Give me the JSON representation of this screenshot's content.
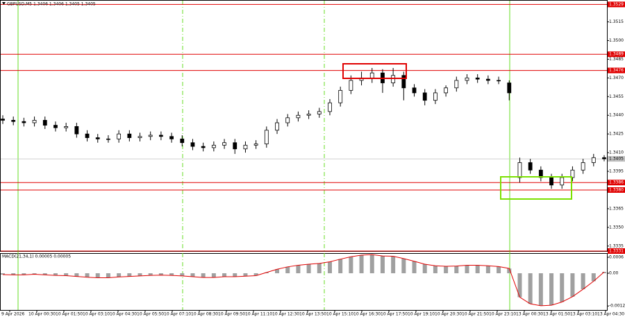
{
  "chart_data": {
    "type": "candlestick",
    "title": "GBPUSD,M5  1.3406 1.3406 1.3405 1.3405",
    "open": [
      1.3437,
      1.3436,
      1.3435,
      1.3434,
      1.3436,
      1.3432,
      1.343,
      1.3431,
      1.3425,
      1.3422,
      1.3421,
      1.3421,
      1.3425,
      1.3422,
      1.3423,
      1.3424,
      1.3423,
      1.3421,
      1.3418,
      1.3415,
      1.3414,
      1.3416,
      1.3418,
      1.3413,
      1.3416,
      1.3417,
      1.3428,
      1.3434,
      1.3438,
      1.344,
      1.3441,
      1.3443,
      1.345,
      1.346,
      1.3468,
      1.347,
      1.3474,
      1.3466,
      1.3472,
      1.3462,
      1.3458,
      1.3452,
      1.3458,
      1.3462,
      1.3468,
      1.347,
      1.3469,
      1.3468,
      1.3466,
      1.339,
      1.3402,
      1.3396,
      1.339,
      1.3384,
      1.339,
      1.3396,
      1.3402,
      1.3406
    ],
    "high": [
      1.344,
      1.3439,
      1.3438,
      1.3439,
      1.3439,
      1.3435,
      1.3434,
      1.3434,
      1.3428,
      1.3425,
      1.3424,
      1.3428,
      1.3428,
      1.3426,
      1.3427,
      1.3427,
      1.3426,
      1.3424,
      1.3421,
      1.3418,
      1.3419,
      1.3421,
      1.3421,
      1.3419,
      1.342,
      1.3431,
      1.3437,
      1.3441,
      1.3443,
      1.3444,
      1.3446,
      1.3453,
      1.3463,
      1.3472,
      1.3475,
      1.3478,
      1.3477,
      1.3478,
      1.3475,
      1.3465,
      1.3461,
      1.3461,
      1.3464,
      1.3471,
      1.3473,
      1.3473,
      1.3472,
      1.3471,
      1.3468,
      1.3406,
      1.3405,
      1.3399,
      1.3393,
      1.3393,
      1.3399,
      1.3405,
      1.3409,
      1.3408
    ],
    "low": [
      1.3433,
      1.3432,
      1.3431,
      1.3431,
      1.3429,
      1.3427,
      1.3427,
      1.3422,
      1.3419,
      1.3418,
      1.3418,
      1.3418,
      1.3419,
      1.3419,
      1.342,
      1.342,
      1.3418,
      1.3415,
      1.3412,
      1.3411,
      1.3411,
      1.3413,
      1.3409,
      1.341,
      1.3413,
      1.3414,
      1.3425,
      1.3431,
      1.3435,
      1.3437,
      1.3438,
      1.344,
      1.3447,
      1.3457,
      1.3464,
      1.3466,
      1.3458,
      1.3463,
      1.3452,
      1.3455,
      1.3448,
      1.3449,
      1.3455,
      1.3459,
      1.3465,
      1.3466,
      1.3465,
      1.3465,
      1.3452,
      1.3386,
      1.3393,
      1.3387,
      1.3381,
      1.3381,
      1.3387,
      1.3393,
      1.3399,
      1.3403
    ],
    "close": [
      1.3436,
      1.3435,
      1.3434,
      1.3436,
      1.3432,
      1.343,
      1.3431,
      1.3425,
      1.3422,
      1.3421,
      1.3421,
      1.3425,
      1.3422,
      1.3423,
      1.3424,
      1.3423,
      1.3421,
      1.3418,
      1.3415,
      1.3414,
      1.3416,
      1.3418,
      1.3413,
      1.3416,
      1.3417,
      1.3428,
      1.3434,
      1.3438,
      1.344,
      1.3441,
      1.3443,
      1.345,
      1.346,
      1.3468,
      1.347,
      1.3474,
      1.3466,
      1.3472,
      1.3462,
      1.3458,
      1.3452,
      1.3458,
      1.3462,
      1.3468,
      1.347,
      1.3469,
      1.3468,
      1.3468,
      1.3458,
      1.3402,
      1.3396,
      1.339,
      1.3384,
      1.339,
      1.3396,
      1.3402,
      1.3406,
      1.3405
    ],
    "x_labels": [
      "9 Apr 2026",
      "10 Apr 00:30",
      "10 Apr 01:50",
      "10 Apr 03:10",
      "10 Apr 04:30",
      "10 Apr 05:50",
      "10 Apr 07:10",
      "10 Apr 08:30",
      "10 Apr 09:50",
      "10 Apr 11:10",
      "10 Apr 12:30",
      "10 Apr 13:50",
      "10 Apr 15:10",
      "10 Apr 16:30",
      "10 Apr 17:50",
      "10 Apr 19:10",
      "10 Apr 20:30",
      "10 Apr 21:50",
      "10 Apr 23:10",
      "13 Apr 00:30",
      "13 Apr 01:50",
      "13 Apr 03:10",
      "13 Apr 04:30"
    ],
    "ylim": [
      1.3331,
      1.3532
    ],
    "yticks": [
      1.3515,
      {
        "value": 1.35,
        "label": "1.3500"
      },
      1.3485,
      {
        "value": 1.347,
        "label": "1.3470"
      },
      1.3455,
      {
        "value": 1.344,
        "label": "1.3440"
      },
      1.3425,
      {
        "value": 1.341,
        "label": "1.3410"
      },
      1.3395,
      1.3365,
      {
        "value": 1.335,
        "label": "1.3350"
      },
      1.3335
    ],
    "levels": [
      1.3529,
      1.3489,
      1.3476,
      1.3386,
      {
        "value": 1.338,
        "label": "1.3380"
      },
      1.3331
    ],
    "level_color": "#e00000",
    "current_price": 1.3405,
    "candle_color": "#000000",
    "indicator": {
      "type": "bar",
      "title": "MACD(21,34,1) 0.00005 0.00005",
      "values": [
        -5e-05,
        -6e-05,
        -6e-05,
        -4e-05,
        -6e-05,
        -8e-05,
        -9e-05,
        -0.00012,
        -0.00015,
        -0.00017,
        -0.00017,
        -0.00014,
        -0.00012,
        -0.0001,
        -8e-05,
        -7e-05,
        -8e-05,
        -0.0001,
        -0.00013,
        -0.00016,
        -0.00016,
        -0.00013,
        -0.00013,
        -0.00011,
        -9e-05,
        3e-05,
        0.00015,
        0.00024,
        0.0003,
        0.00034,
        0.00037,
        0.00043,
        0.00053,
        0.00062,
        0.00068,
        0.0007,
        0.00065,
        0.00064,
        0.00055,
        0.00045,
        0.00034,
        0.00028,
        0.00026,
        0.00027,
        0.0003,
        0.0003,
        0.00028,
        0.00025,
        0.00018,
        -0.0009,
        -0.00115,
        -0.00122,
        -0.0012,
        -0.00108,
        -0.00088,
        -0.0006,
        -0.0003,
        5e-05
      ],
      "ylim": [
        -0.00138,
        0.00073
      ],
      "yticks": [
        0.0006,
        {
          "value": 0,
          "label": "0.00"
        },
        -0.00123
      ],
      "color": "#a0a0a0",
      "line_color": "#e00000"
    }
  }
}
